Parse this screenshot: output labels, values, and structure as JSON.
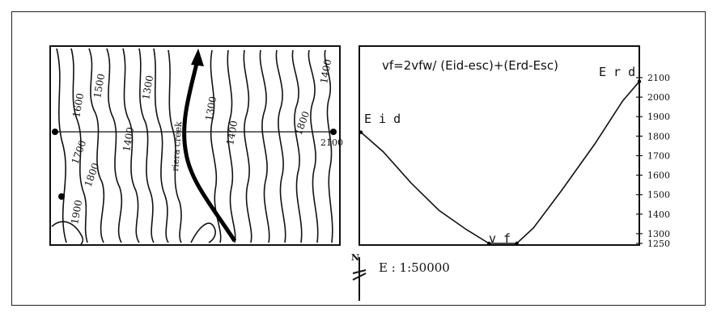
{
  "map": {
    "contour_labels": [
      "1500",
      "1600",
      "1700",
      "1800",
      "1900",
      "1400",
      "1300",
      "1300",
      "1400",
      "1800",
      "1400",
      "2100"
    ],
    "stream_label": "riera creek",
    "scale_label": "E : 1:50000",
    "north_label": "N"
  },
  "profile": {
    "formula": "vf=2vfw/ (Eid-esc)+(Erd-Esc)",
    "left_label": "E i d",
    "right_label": "E r d",
    "valley_label": "v f",
    "ticks": [
      "2100",
      "2000",
      "1900",
      "1800",
      "1700",
      "1600",
      "1500",
      "1400",
      "1300",
      "1250"
    ]
  },
  "chart_data": {
    "type": "line",
    "title": "vf=2vfw/ (Eid-esc)+(Erd-Esc)",
    "ylim": [
      1250,
      2100
    ],
    "yticks": [
      2100,
      2000,
      1900,
      1800,
      1700,
      1600,
      1500,
      1400,
      1300,
      1250
    ],
    "series": [
      {
        "name": "",
        "points": [
          [
            0,
            1820
          ],
          [
            0.08,
            1720
          ],
          [
            0.18,
            1560
          ],
          [
            0.28,
            1420
          ],
          [
            0.38,
            1320
          ],
          [
            0.46,
            1250
          ],
          [
            0.56,
            1250
          ],
          [
            0.62,
            1330
          ],
          [
            0.72,
            1520
          ],
          [
            0.84,
            1760
          ],
          [
            0.94,
            1980
          ],
          [
            1.0,
            2080
          ]
        ]
      }
    ],
    "annotations": [
      "E i d",
      "E r d",
      "v f"
    ]
  }
}
